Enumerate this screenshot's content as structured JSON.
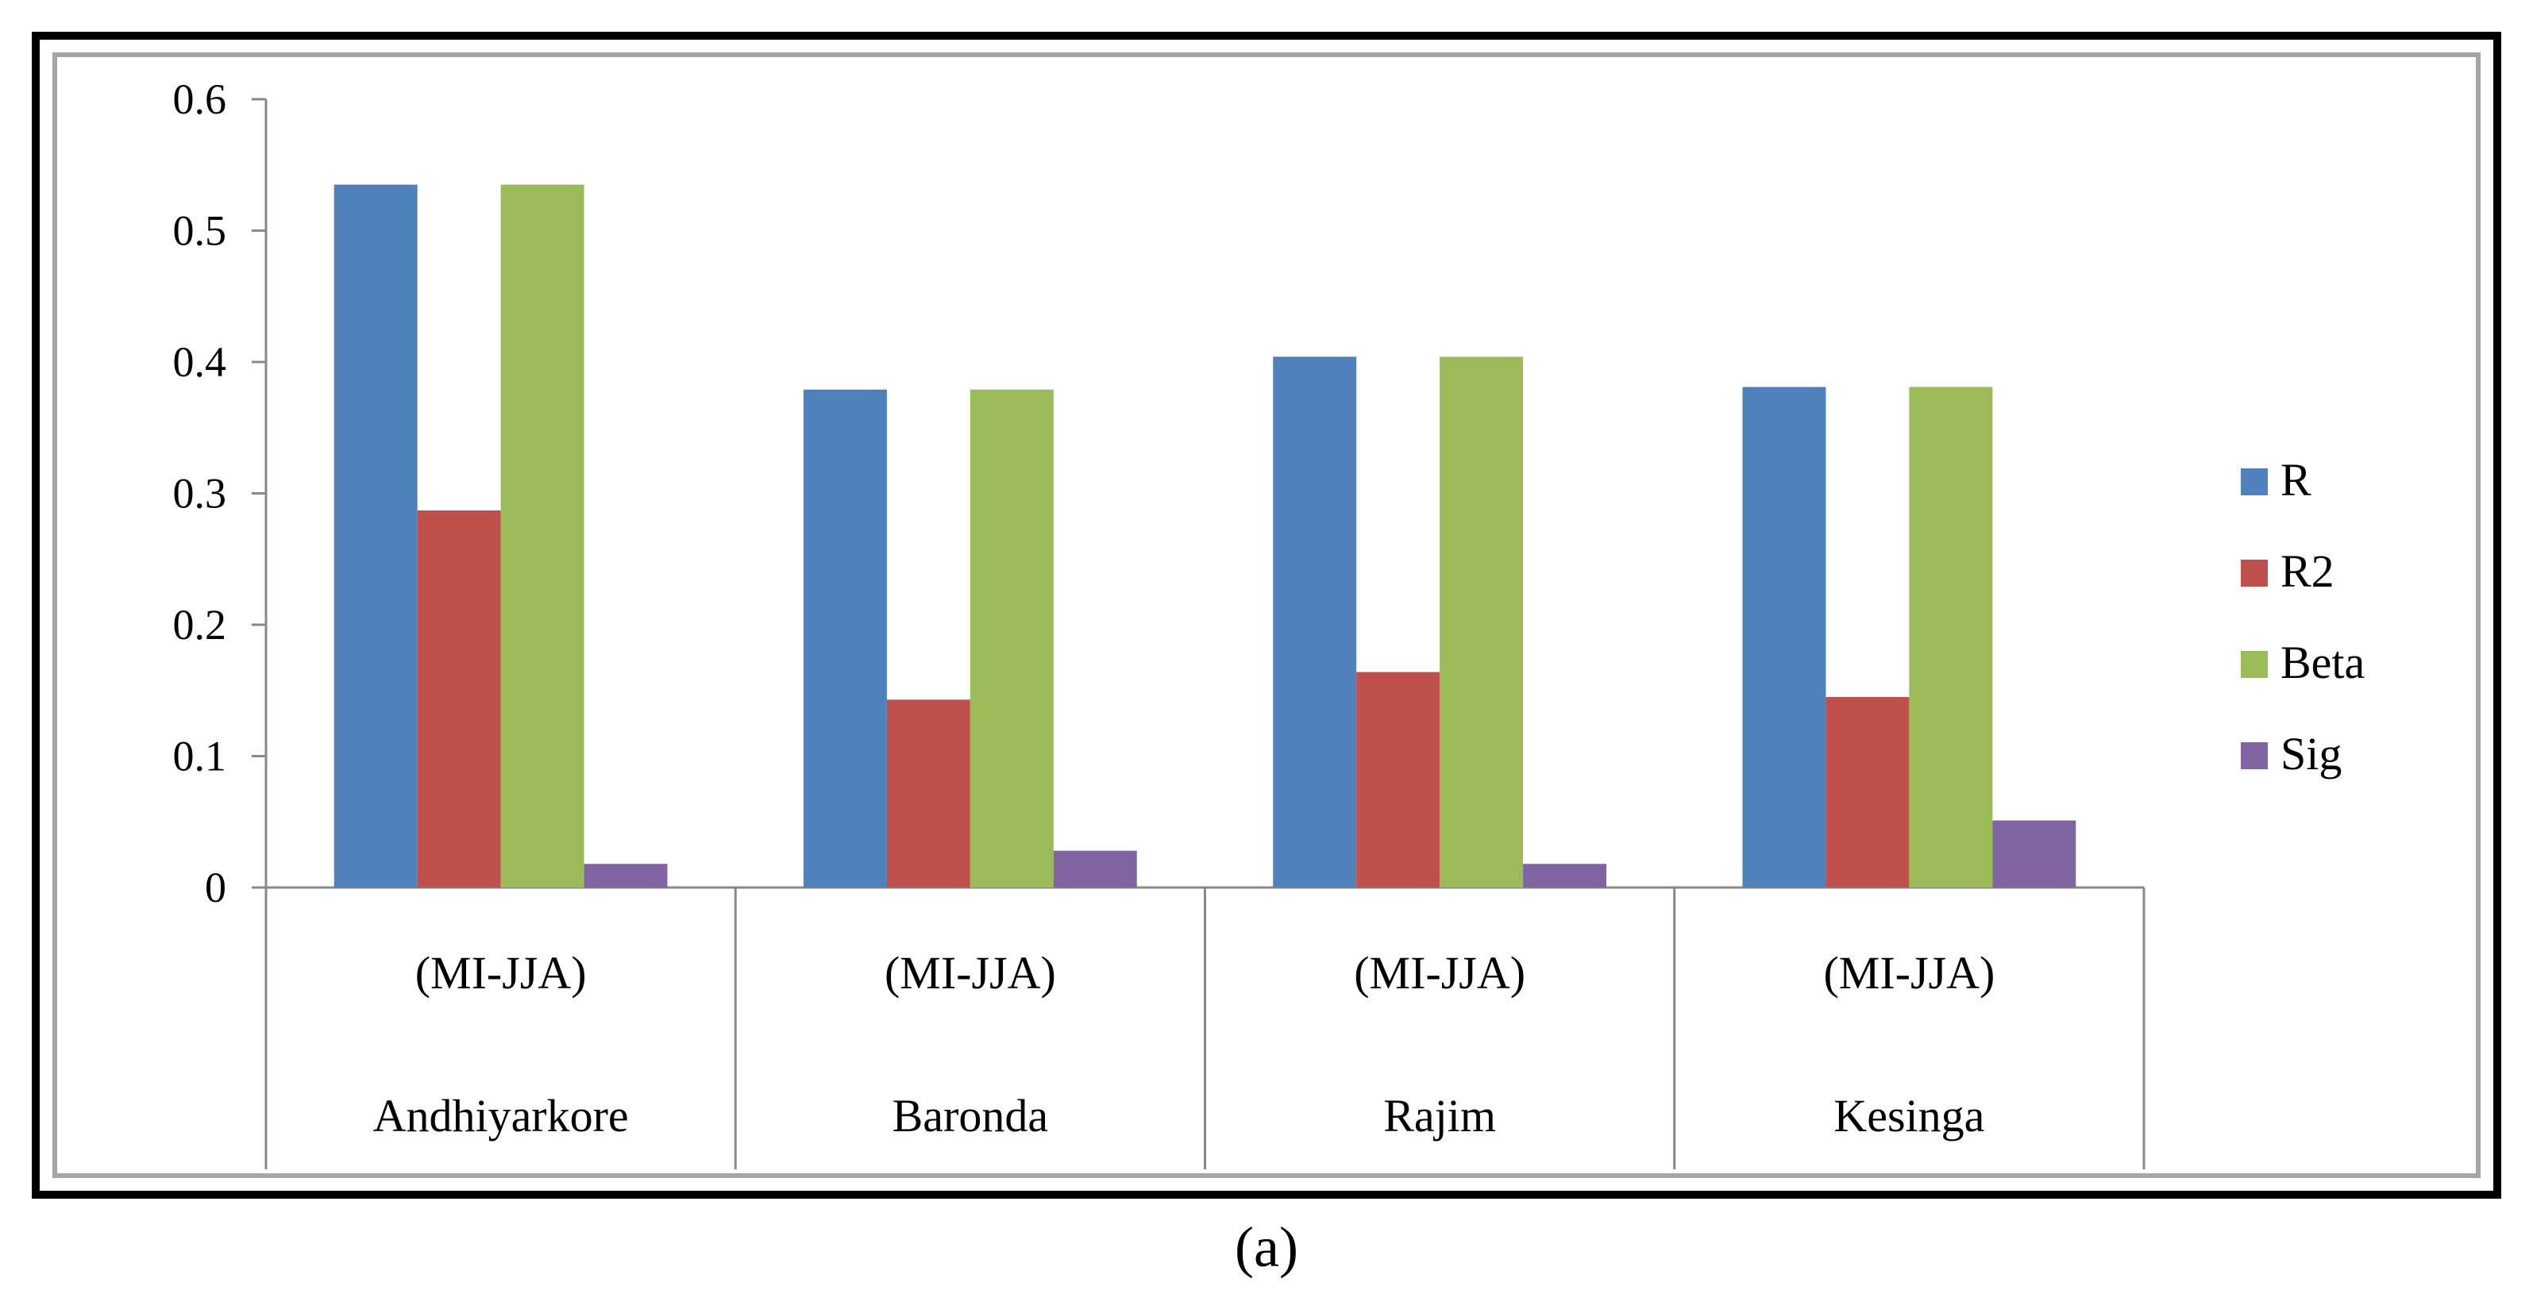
{
  "caption": "(a)",
  "chart_data": {
    "type": "bar",
    "categories": [
      [
        "(MI-JJA)",
        "Andhiyarkore"
      ],
      [
        "(MI-JJA)",
        "Baronda"
      ],
      [
        "(MI-JJA)",
        "Rajim"
      ],
      [
        "(MI-JJA)",
        "Kesinga"
      ]
    ],
    "series": [
      {
        "name": "R",
        "color": "#4f81bd",
        "values": [
          0.535,
          0.379,
          0.404,
          0.381
        ]
      },
      {
        "name": "R2",
        "color": "#c0504d",
        "values": [
          0.287,
          0.143,
          0.164,
          0.145
        ]
      },
      {
        "name": "Beta",
        "color": "#9bbb59",
        "values": [
          0.535,
          0.379,
          0.404,
          0.381
        ]
      },
      {
        "name": "Sig",
        "color": "#8064a2",
        "values": [
          0.018,
          0.028,
          0.018,
          0.051
        ]
      }
    ],
    "yticks": [
      "0",
      "0.1",
      "0.2",
      "0.3",
      "0.4",
      "0.5",
      "0.6"
    ],
    "ylim": [
      0,
      0.6
    ],
    "grid": false,
    "legend": "right",
    "title": "",
    "xlabel": "",
    "ylabel": ""
  }
}
